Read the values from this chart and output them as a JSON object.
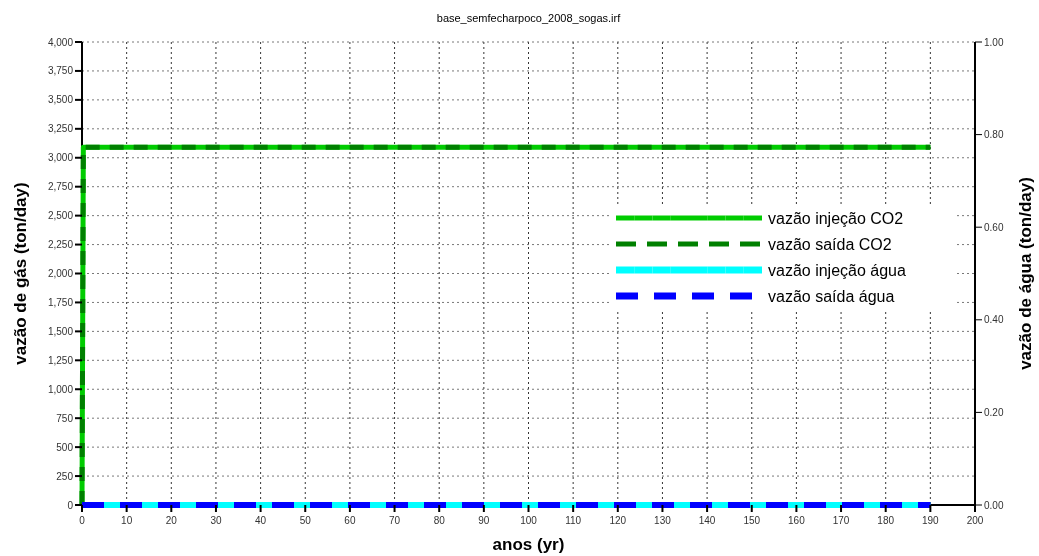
{
  "chart_data": {
    "type": "line",
    "title": "base_semfecharpoco_2008_sogas.irf",
    "xlabel": "anos (yr)",
    "ylabel": "vazão de gás (ton/day)",
    "y2label": "vazão de água (ton/day)",
    "series": [
      {
        "name": "vazão injeção CO2",
        "color": "#00cc00",
        "x": [
          0,
          0.3,
          190
        ],
        "values": [
          0,
          3090,
          3090
        ],
        "line_style": "solid"
      },
      {
        "name": "vazão saída CO2",
        "color": "#008000",
        "x": [
          0,
          0.3,
          190
        ],
        "values": [
          0,
          3090,
          3090
        ],
        "line_style": "dashed"
      },
      {
        "name": "vazão injeção água",
        "color": "#00ffff",
        "x": [
          0,
          190
        ],
        "values": [
          0,
          0
        ],
        "axis": "y2",
        "line_style": "solid"
      },
      {
        "name": "vazão saída água",
        "color": "#0000ff",
        "x": [
          0,
          190
        ],
        "values": [
          0,
          0
        ],
        "axis": "y2",
        "line_style": "dashed"
      }
    ],
    "xlim": [
      0,
      200
    ],
    "xticks": [
      0,
      10,
      20,
      30,
      40,
      50,
      60,
      70,
      80,
      90,
      100,
      110,
      120,
      130,
      140,
      150,
      160,
      170,
      180,
      190,
      200
    ],
    "ylim": [
      0,
      4000
    ],
    "yticks": [
      {
        "value": 0,
        "label": "0"
      },
      {
        "value": 250,
        "label": "250"
      },
      {
        "value": 500,
        "label": "500"
      },
      {
        "value": 750,
        "label": "750"
      },
      {
        "value": 1000,
        "label": "1,000"
      },
      {
        "value": 1250,
        "label": "1,250"
      },
      {
        "value": 1500,
        "label": "1,500"
      },
      {
        "value": 1750,
        "label": "1,750"
      },
      {
        "value": 2000,
        "label": "2,000"
      },
      {
        "value": 2250,
        "label": "2,250"
      },
      {
        "value": 2500,
        "label": "2,500"
      },
      {
        "value": 2750,
        "label": "2,750"
      },
      {
        "value": 3000,
        "label": "3,000"
      },
      {
        "value": 3250,
        "label": "3,250"
      },
      {
        "value": 3500,
        "label": "3,500"
      },
      {
        "value": 3750,
        "label": "3,750"
      },
      {
        "value": 4000,
        "label": "4,000"
      }
    ],
    "y2lim": [
      0,
      1
    ],
    "y2ticks": [
      {
        "value": 0,
        "label": "0.00"
      },
      {
        "value": 0.2,
        "label": "0.20"
      },
      {
        "value": 0.4,
        "label": "0.40"
      },
      {
        "value": 0.6,
        "label": "0.60"
      },
      {
        "value": 0.8,
        "label": "0.80"
      },
      {
        "value": 1,
        "label": "1.00"
      }
    ],
    "grid": true,
    "legend": "right",
    "marker": "none"
  }
}
